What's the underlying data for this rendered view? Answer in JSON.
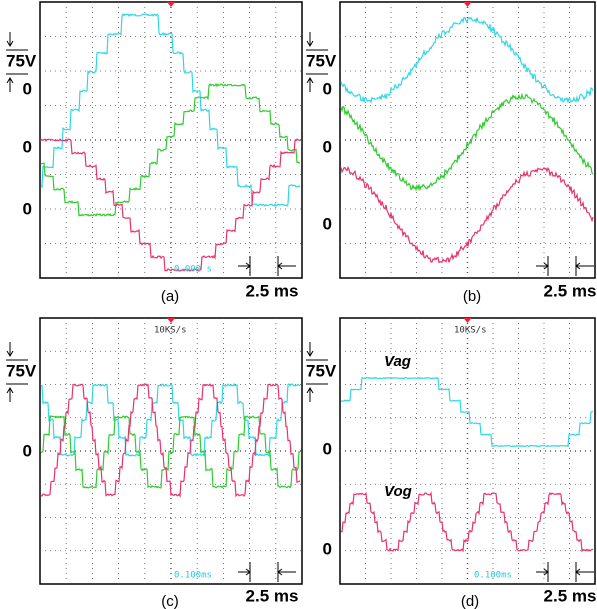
{
  "panels": [
    {
      "label": "(a)",
      "scale": "75V",
      "zero_labels": [
        "0",
        "0",
        "0"
      ],
      "time_scale": "2.5 ms",
      "readout": "0.000 s"
    },
    {
      "label": "(b)",
      "scale": "75V",
      "zero_labels": [
        "0",
        "0",
        "0"
      ],
      "time_scale": "2.5 ms"
    },
    {
      "label": "(c)",
      "scale": "75V",
      "zero_labels": [
        "0"
      ],
      "time_scale": "2.5 ms",
      "rate": "10KS/s",
      "readout": "0.100ms"
    },
    {
      "label": "(d)",
      "scale": "75V",
      "zero_labels": [
        "0",
        "0"
      ],
      "time_scale": "2.5 ms",
      "rate": "10KS/s",
      "readout": "0.100ms",
      "trace_labels": [
        "Vag",
        "Vog"
      ]
    }
  ]
}
